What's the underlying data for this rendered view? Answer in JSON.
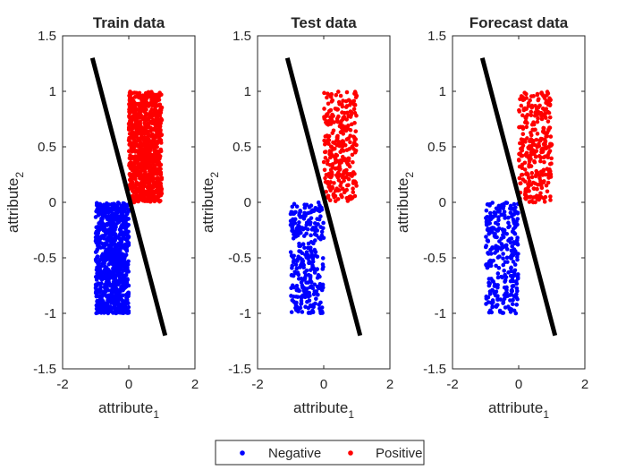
{
  "legend": {
    "placement": "bottom",
    "entries": [
      {
        "name": "Negative",
        "color": "#0000ff"
      },
      {
        "name": "Positive",
        "color": "#ff0000"
      }
    ]
  },
  "chart_data": [
    {
      "type": "scatter",
      "title": "Train data",
      "xlabel": "attribute",
      "xlabel_sub": "1",
      "ylabel": "attribute",
      "ylabel_sub": "2",
      "xlim": [
        -2,
        2
      ],
      "ylim": [
        -1.5,
        1.5
      ],
      "xticks": [
        -2,
        0,
        2
      ],
      "yticks": [
        1.5,
        1,
        0.5,
        0,
        -0.5,
        -1,
        -1.5
      ],
      "grid": false,
      "point_count_per_class": 900,
      "series": [
        {
          "name": "Negative",
          "color": "#0000ff",
          "x_range": [
            -1.0,
            0.0
          ],
          "y_range": [
            -1.0,
            0.0
          ]
        },
        {
          "name": "Positive",
          "color": "#ff0000",
          "x_range": [
            0.0,
            1.0
          ],
          "y_range": [
            0.0,
            1.0
          ]
        }
      ],
      "decision_boundary": {
        "color": "#000000",
        "x": [
          -1.1,
          1.1
        ],
        "y": [
          1.3,
          -1.2
        ]
      }
    },
    {
      "type": "scatter",
      "title": "Test data",
      "xlabel": "attribute",
      "xlabel_sub": "1",
      "ylabel": "attribute",
      "ylabel_sub": "2",
      "xlim": [
        -2,
        2
      ],
      "ylim": [
        -1.5,
        1.5
      ],
      "xticks": [
        -2,
        0,
        2
      ],
      "yticks": [
        1.5,
        1,
        0.5,
        0,
        -0.5,
        -1,
        -1.5
      ],
      "grid": false,
      "point_count_per_class": 300,
      "series": [
        {
          "name": "Negative",
          "color": "#0000ff",
          "x_range": [
            -1.0,
            0.0
          ],
          "y_range": [
            -1.0,
            0.0
          ]
        },
        {
          "name": "Positive",
          "color": "#ff0000",
          "x_range": [
            0.0,
            1.0
          ],
          "y_range": [
            0.0,
            1.0
          ]
        }
      ],
      "decision_boundary": {
        "color": "#000000",
        "x": [
          -1.1,
          1.1
        ],
        "y": [
          1.3,
          -1.2
        ]
      }
    },
    {
      "type": "scatter",
      "title": "Forecast data",
      "xlabel": "attribute",
      "xlabel_sub": "1",
      "ylabel": "attribute",
      "ylabel_sub": "2",
      "xlim": [
        -2,
        2
      ],
      "ylim": [
        -1.5,
        1.5
      ],
      "xticks": [
        -2,
        0,
        2
      ],
      "yticks": [
        1.5,
        1,
        0.5,
        0,
        -0.5,
        -1,
        -1.5
      ],
      "grid": false,
      "point_count_per_class": 300,
      "series": [
        {
          "name": "Negative",
          "color": "#0000ff",
          "x_range": [
            -1.0,
            0.0
          ],
          "y_range": [
            -1.0,
            0.0
          ]
        },
        {
          "name": "Positive",
          "color": "#ff0000",
          "x_range": [
            0.0,
            1.0
          ],
          "y_range": [
            0.0,
            1.0
          ]
        }
      ],
      "decision_boundary": {
        "color": "#000000",
        "x": [
          -1.1,
          1.1
        ],
        "y": [
          1.3,
          -1.2
        ]
      }
    }
  ]
}
